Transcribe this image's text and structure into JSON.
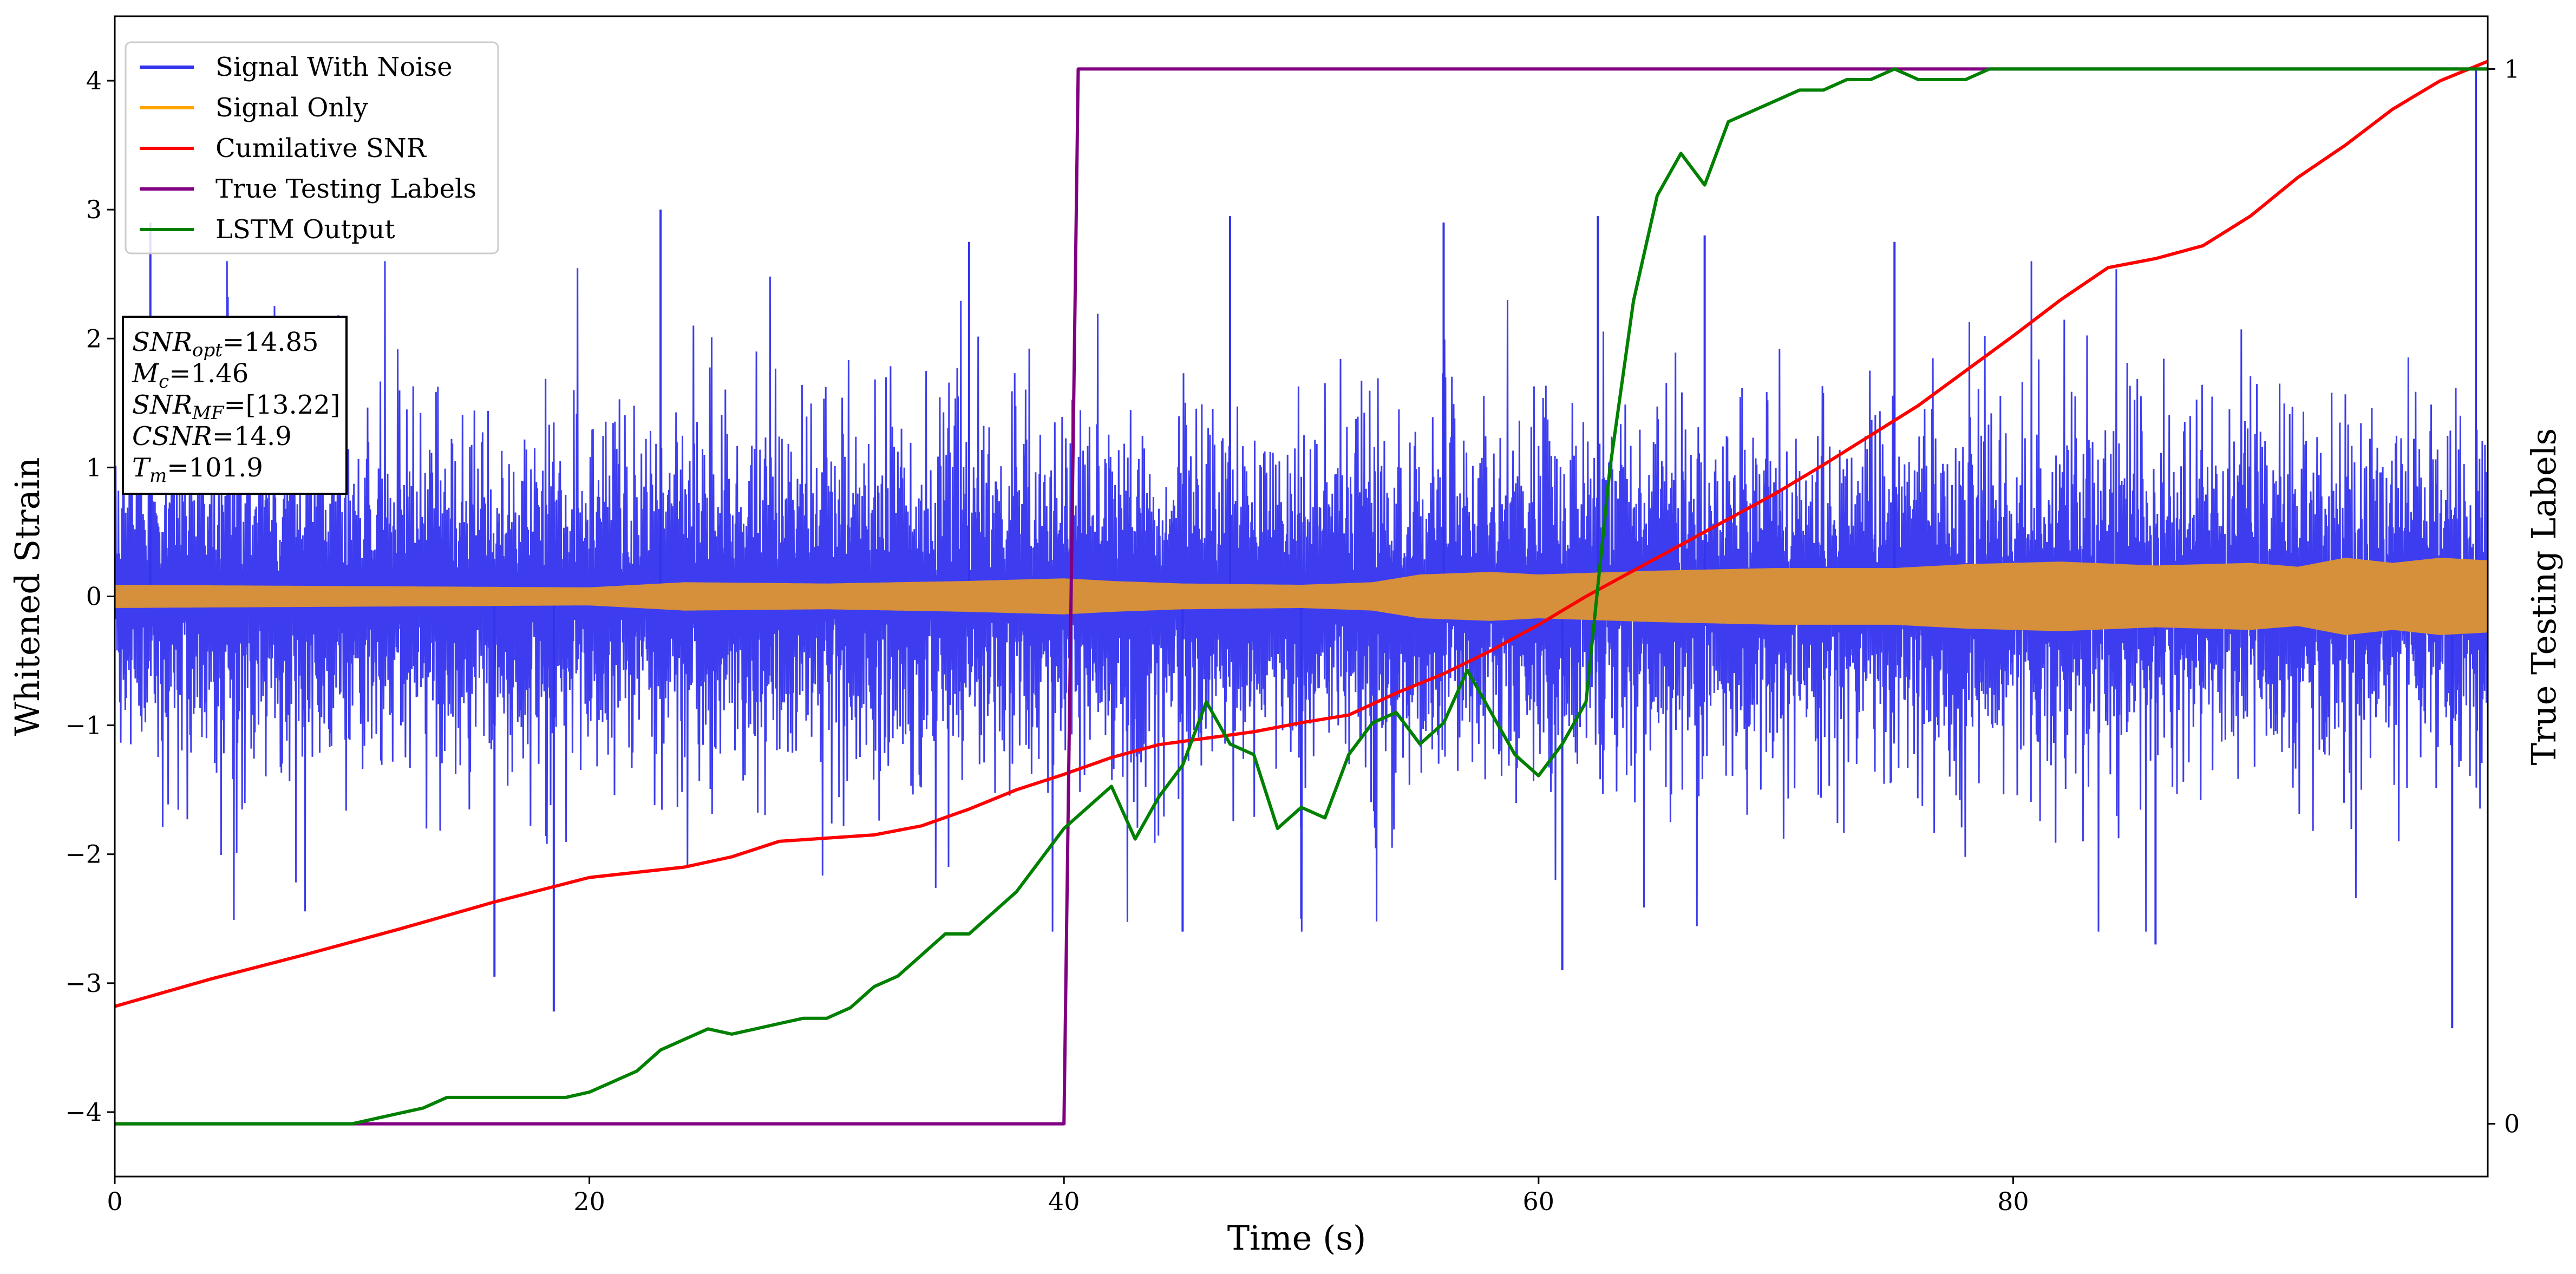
{
  "chart_data": {
    "type": "line",
    "title": "",
    "xlabel": "Time (s)",
    "ylabel": "Whitened Strain",
    "ylabel_right": "True Testing Labels",
    "xlim": [
      0,
      100
    ],
    "ylim": [
      -4.5,
      4.5
    ],
    "ylim_right": [
      -0.05,
      1.05
    ],
    "xticks": [
      0,
      20,
      40,
      60,
      80
    ],
    "xtick_labels": [
      "0",
      "20",
      "40",
      "60",
      "80"
    ],
    "yticks": [
      -4,
      -3,
      -2,
      -1,
      0,
      1,
      2,
      3,
      4
    ],
    "ytick_labels": [
      "−4",
      "−3",
      "−2",
      "−1",
      "0",
      "1",
      "2",
      "3",
      "4"
    ],
    "yticks_right": [
      0,
      1
    ],
    "ytick_labels_right": [
      "0",
      "1"
    ],
    "grid": false,
    "legend_position": "top-left",
    "legend": [
      {
        "label": "Signal With Noise",
        "color": "#3333ee"
      },
      {
        "label": "Signal Only",
        "color": "#ffa500"
      },
      {
        "label": "Cumilative SNR",
        "color": "#ff0000"
      },
      {
        "label": "True Testing Labels",
        "color": "#800080"
      },
      {
        "label": "LSTM Output",
        "color": "#008000"
      }
    ],
    "annotation_box": {
      "lines": [
        {
          "base": "SNR",
          "sub": "opt",
          "value": "=14.85"
        },
        {
          "base": "M",
          "sub": "c",
          "value": "=1.46"
        },
        {
          "base": "SNR",
          "sub": "MF",
          "value": "=[13.22]"
        },
        {
          "base": "CSNR",
          "sub": "",
          "value": "=14.9"
        },
        {
          "base": "T",
          "sub": "m",
          "value": "=101.9"
        }
      ]
    },
    "series": [
      {
        "name": "Signal Only",
        "color": "#d68f3a",
        "x": [
          0,
          10,
          20,
          24,
          30,
          36,
          40,
          42,
          45,
          50,
          53,
          55,
          58,
          60,
          65,
          70,
          75,
          78,
          82,
          86,
          90,
          92,
          94,
          96,
          98,
          100
        ],
        "values": [
          0.09,
          0.08,
          0.07,
          0.11,
          0.1,
          0.12,
          0.14,
          0.12,
          0.1,
          0.09,
          0.11,
          0.17,
          0.19,
          0.17,
          0.2,
          0.22,
          0.22,
          0.25,
          0.27,
          0.24,
          0.26,
          0.23,
          0.3,
          0.26,
          0.3,
          0.28
        ]
      },
      {
        "name": "Cumilative SNR",
        "color": "#ff0000",
        "x": [
          0,
          4,
          8,
          12,
          16,
          20,
          24,
          26,
          28,
          32,
          34,
          36,
          38,
          40,
          42,
          44,
          46,
          48,
          50,
          52,
          54,
          56,
          58,
          60,
          62,
          64,
          66,
          68,
          70,
          72,
          74,
          76,
          78,
          80,
          82,
          84,
          86,
          88,
          90,
          92,
          94,
          96,
          98,
          100
        ],
        "values": [
          -3.18,
          -2.97,
          -2.78,
          -2.58,
          -2.37,
          -2.18,
          -2.1,
          -2.02,
          -1.9,
          -1.85,
          -1.78,
          -1.65,
          -1.5,
          -1.38,
          -1.25,
          -1.15,
          -1.1,
          -1.05,
          -0.98,
          -0.92,
          -0.75,
          -0.6,
          -0.42,
          -0.22,
          0.0,
          0.2,
          0.4,
          0.6,
          0.8,
          1.02,
          1.25,
          1.48,
          1.75,
          2.02,
          2.3,
          2.55,
          2.62,
          2.72,
          2.95,
          3.25,
          3.5,
          3.78,
          4.0,
          4.15
        ]
      },
      {
        "name": "True Testing Labels",
        "color": "#800080",
        "axis": "right",
        "x": [
          0,
          40.0,
          40.6,
          80,
          100
        ],
        "values": [
          0,
          0,
          1,
          1,
          1
        ]
      },
      {
        "name": "LSTM Output",
        "color": "#008000",
        "axis": "right",
        "x": [
          0,
          10,
          11,
          12,
          13,
          14,
          15,
          16,
          17,
          18,
          19,
          20,
          21,
          22,
          23,
          24,
          25,
          26,
          27,
          28,
          29,
          30,
          31,
          32,
          33,
          34,
          35,
          36,
          37,
          38,
          39,
          40,
          41,
          42,
          43,
          44,
          45,
          46,
          47,
          48,
          49,
          50,
          51,
          52,
          53,
          54,
          55,
          56,
          57,
          58,
          59,
          60,
          61,
          62,
          63,
          64,
          65,
          66,
          67,
          68,
          69,
          70,
          71,
          72,
          73,
          74,
          75,
          76,
          77,
          78,
          79,
          80,
          85,
          90,
          95,
          100
        ],
        "values": [
          0,
          0,
          0.005,
          0.01,
          0.015,
          0.025,
          0.025,
          0.025,
          0.025,
          0.025,
          0.025,
          0.03,
          0.04,
          0.05,
          0.07,
          0.08,
          0.09,
          0.085,
          0.09,
          0.095,
          0.1,
          0.1,
          0.11,
          0.13,
          0.14,
          0.16,
          0.18,
          0.18,
          0.2,
          0.22,
          0.25,
          0.28,
          0.3,
          0.32,
          0.27,
          0.31,
          0.34,
          0.4,
          0.36,
          0.35,
          0.28,
          0.3,
          0.29,
          0.35,
          0.38,
          0.39,
          0.36,
          0.38,
          0.43,
          0.39,
          0.35,
          0.33,
          0.36,
          0.4,
          0.62,
          0.78,
          0.88,
          0.92,
          0.89,
          0.95,
          0.96,
          0.97,
          0.98,
          0.98,
          0.99,
          0.99,
          1.0,
          0.99,
          0.99,
          0.99,
          1.0,
          1.0,
          1.0,
          1.0,
          1.0,
          1.0
        ]
      },
      {
        "name": "Signal With Noise",
        "color": "#3333ee",
        "note_points": "noise band approximately spanning -2.5 to 2.5 with spikes near 3",
        "x": [
          1.5,
          16,
          18.5,
          23,
          36,
          45,
          47,
          50,
          56,
          61,
          62.5,
          67,
          75,
          86,
          98.5,
          99.5
        ],
        "values": [
          2.9,
          -2.95,
          -3.22,
          3.0,
          2.75,
          -2.6,
          2.95,
          -2.5,
          2.9,
          -2.9,
          2.95,
          2.8,
          2.75,
          -2.7,
          -3.35,
          4.1
        ]
      }
    ]
  }
}
